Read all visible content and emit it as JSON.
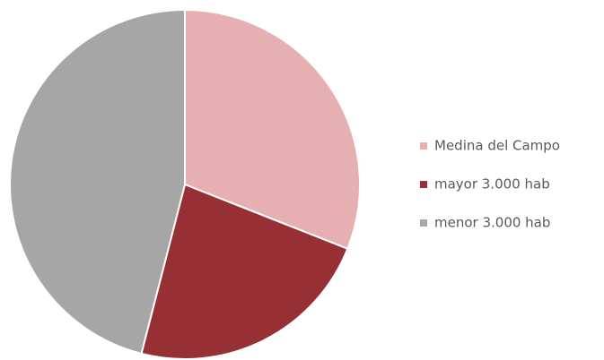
{
  "chart_data": {
    "type": "pie",
    "categories": [
      "Medina del Campo",
      "mayor 3.000 hab",
      "menor 3.000 hab"
    ],
    "values": [
      31,
      23,
      46
    ],
    "colors": [
      "#e6b0b3",
      "#963034",
      "#a6a6a6"
    ],
    "legend": "right"
  }
}
